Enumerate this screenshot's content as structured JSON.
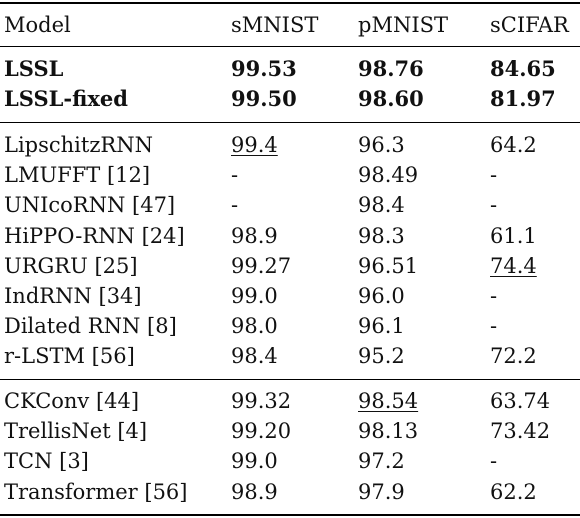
{
  "header": [
    "Model",
    "sMNIST",
    "pMNIST",
    "sCIFAR"
  ],
  "groups": [
    {
      "rows": [
        {
          "cells": [
            "LSSL",
            "99.53",
            "98.76",
            "84.65"
          ],
          "bold": true
        },
        {
          "cells": [
            "LSSL-fixed",
            "99.50",
            "98.60",
            "81.97"
          ],
          "bold": true
        }
      ]
    },
    {
      "rows": [
        {
          "cells": [
            "LipschitzRNN",
            "99.4",
            "96.3",
            "64.2"
          ],
          "underline": [
            1
          ]
        },
        {
          "cells": [
            "LMUFFT [12]",
            "-",
            "98.49",
            "-"
          ]
        },
        {
          "cells": [
            "UNIcoRNN [47]",
            "-",
            "98.4",
            "-"
          ]
        },
        {
          "cells": [
            "HiPPO-RNN [24]",
            "98.9",
            "98.3",
            "61.1"
          ]
        },
        {
          "cells": [
            "URGRU [25]",
            "99.27",
            "96.51",
            "74.4"
          ],
          "underline": [
            3
          ]
        },
        {
          "cells": [
            "IndRNN [34]",
            "99.0",
            "96.0",
            "-"
          ]
        },
        {
          "cells": [
            "Dilated RNN [8]",
            "98.0",
            "96.1",
            "-"
          ]
        },
        {
          "cells": [
            "r-LSTM  [56]",
            "98.4",
            "95.2",
            "72.2"
          ]
        }
      ]
    },
    {
      "rows": [
        {
          "cells": [
            "CKConv [44]",
            "99.32",
            "98.54",
            "63.74"
          ],
          "underline": [
            2
          ]
        },
        {
          "cells": [
            "TrellisNet [4]",
            "99.20",
            "98.13",
            "73.42"
          ]
        },
        {
          "cells": [
            "TCN [3]",
            "99.0",
            "97.2",
            "-"
          ]
        },
        {
          "cells": [
            "Transformer [56]",
            "98.9",
            "97.9",
            "62.2"
          ]
        }
      ]
    }
  ]
}
